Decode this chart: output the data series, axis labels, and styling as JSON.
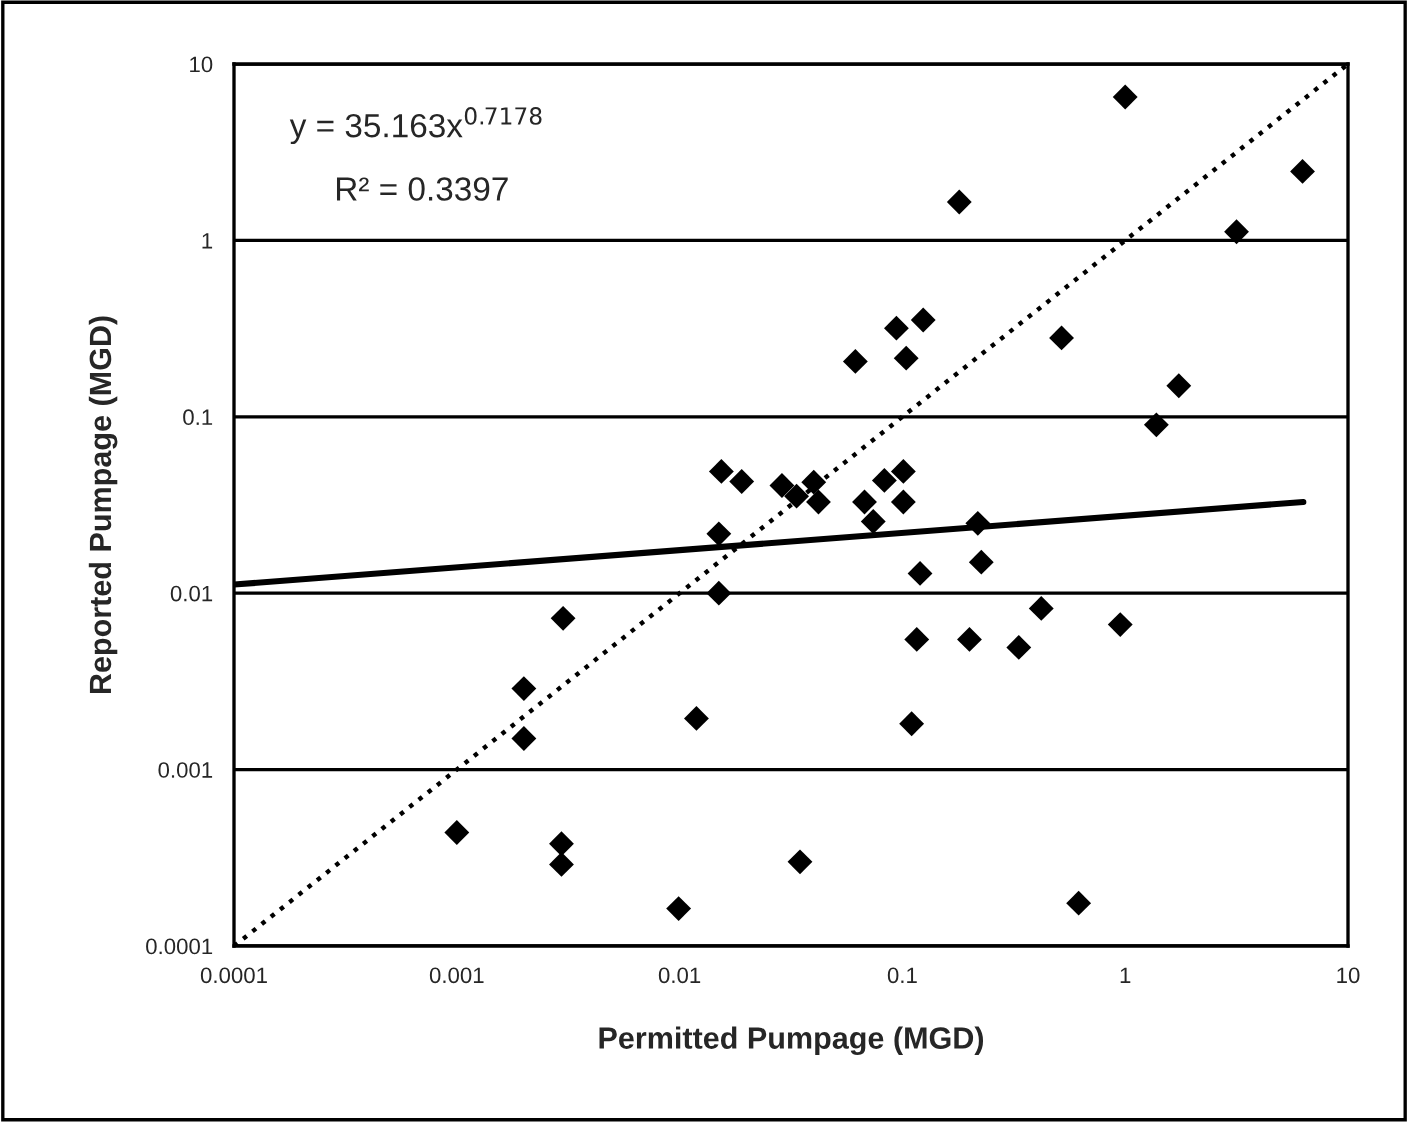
{
  "chart_data": {
    "type": "scatter",
    "xlabel": "Permitted Pumpage (MGD)",
    "ylabel": "Reported Pumpage (MGD)",
    "log": "xy",
    "grid": "y",
    "legend": false,
    "xlim": [
      0.0001,
      10
    ],
    "ylim": [
      0.0001,
      10
    ],
    "xticks": [
      0.0001,
      0.001,
      0.01,
      0.1,
      1,
      10
    ],
    "yticks": [
      0.0001,
      0.001,
      0.01,
      0.1,
      1,
      10
    ],
    "annotations": [
      "y = 35.163x$^{0.7178}$",
      "R² = 0.3397"
    ],
    "series": [
      {
        "color": "#000000",
        "marker": "diamond",
        "x": [
          1.0,
          0.18,
          6.25,
          3.16,
          0.124,
          0.094,
          0.104,
          0.0615,
          0.518,
          1.74,
          1.38,
          0.101,
          0.083,
          0.04,
          0.042,
          0.0676,
          0.101,
          0.074,
          0.218,
          0.0154,
          0.019,
          0.0288,
          0.0335,
          0.015,
          0.015,
          0.003,
          0.002,
          0.002,
          0.0119,
          0.001,
          0.00295,
          0.00295,
          0.0099,
          0.0347,
          0.12,
          0.226,
          0.116,
          0.2,
          0.333,
          0.42,
          0.95,
          0.11,
          0.618
        ],
        "values": [
          6.5,
          1.65,
          2.46,
          1.12,
          0.354,
          0.318,
          0.215,
          0.206,
          0.28,
          0.15,
          0.09,
          0.049,
          0.0436,
          0.0426,
          0.0329,
          0.0329,
          0.0329,
          0.0255,
          0.0249,
          0.049,
          0.043,
          0.0408,
          0.0355,
          0.0217,
          0.01,
          0.0072,
          0.00288,
          0.0015,
          0.00195,
          0.00044,
          0.00038,
          0.00029,
          0.000163,
          0.0003,
          0.01295,
          0.015,
          0.00547,
          0.00547,
          0.00493,
          0.0082,
          0.00664,
          0.00182,
          0.000175
        ]
      },
      {
        "type": "line",
        "color": "#000000",
        "line_style": "solid",
        "marker": "none",
        "x": [
          0.0001,
          6.3
        ],
        "values": [
          0.0112,
          0.0329
        ]
      },
      {
        "type": "line",
        "color": "#000000",
        "line_style": "dotted",
        "marker": "none",
        "x": [
          0.0001,
          10
        ],
        "values": [
          0.0001,
          10
        ]
      }
    ]
  }
}
